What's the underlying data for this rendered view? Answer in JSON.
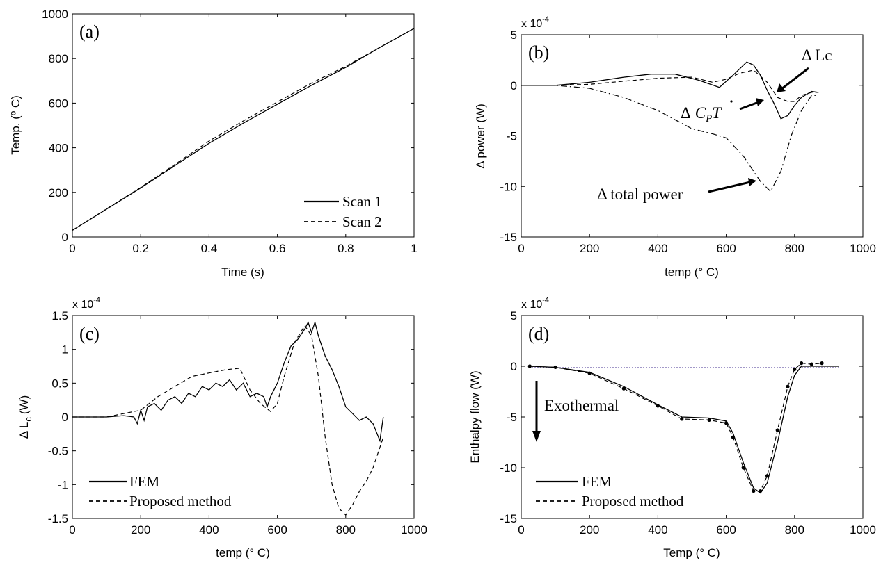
{
  "chart_data": [
    {
      "panel": "(a)",
      "type": "line",
      "xlabel": "Time (s)",
      "ylabel": "Temp. (º C)",
      "xlim": [
        0,
        1
      ],
      "ylim": [
        0,
        1000
      ],
      "xticks": [
        0,
        0.2,
        0.4,
        0.6,
        0.8,
        1
      ],
      "yticks": [
        0,
        200,
        400,
        600,
        800,
        1000
      ],
      "legend": {
        "placement": "bottom-right"
      },
      "series": [
        {
          "name": "Scan 1",
          "style": "solid",
          "x": [
            0,
            0.1,
            0.2,
            0.3,
            0.4,
            0.5,
            0.6,
            0.7,
            0.8,
            0.9,
            1.0
          ],
          "y": [
            30,
            125,
            220,
            320,
            420,
            510,
            595,
            680,
            760,
            850,
            935
          ]
        },
        {
          "name": "Scan 2",
          "style": "dashed",
          "x": [
            0,
            0.1,
            0.2,
            0.3,
            0.4,
            0.5,
            0.6,
            0.7,
            0.8,
            0.9,
            1.0
          ],
          "y": [
            30,
            126,
            222,
            325,
            430,
            520,
            605,
            690,
            765,
            850,
            935
          ]
        }
      ]
    },
    {
      "panel": "(b)",
      "type": "line",
      "xlabel": "temp (° C)",
      "ylabel": "Δ power (W)",
      "multiplier_base": "x 10",
      "multiplier_exp": "-4",
      "xlim": [
        0,
        1000
      ],
      "ylim": [
        -15,
        5
      ],
      "xticks": [
        0,
        200,
        400,
        600,
        800,
        1000
      ],
      "yticks": [
        -15,
        -10,
        -5,
        0,
        5
      ],
      "annotations": {
        "lc": "Δ Lc",
        "cpt_delta": "Δ",
        "cpt_c": "C",
        "cpt_sub": "P",
        "cpt_t": "T",
        "total": "Δ total power"
      },
      "series": [
        {
          "style": "solid",
          "x": [
            0,
            100,
            200,
            300,
            380,
            450,
            520,
            580,
            620,
            660,
            680,
            700,
            720,
            740,
            760,
            780,
            800,
            820,
            850,
            870
          ],
          "y": [
            0,
            0,
            0.3,
            0.8,
            1.1,
            1.1,
            0.5,
            -0.2,
            1.0,
            2.3,
            2.0,
            1.0,
            -0.5,
            -1.8,
            -3.3,
            -3.0,
            -2.0,
            -1.2,
            -0.6,
            -0.7
          ]
        },
        {
          "style": "dashed",
          "x": [
            0,
            100,
            200,
            300,
            400,
            500,
            560,
            600,
            640,
            680,
            720,
            750,
            780,
            800,
            820,
            850,
            870
          ],
          "y": [
            0,
            0,
            0.1,
            0.4,
            0.7,
            0.8,
            0.3,
            0.6,
            1.2,
            1.5,
            0.3,
            -1.2,
            -1.6,
            -1.6,
            -1.0,
            -0.7,
            -0.7
          ]
        },
        {
          "style": "dashdot",
          "x": [
            0,
            100,
            200,
            300,
            400,
            500,
            560,
            600,
            650,
            700,
            730,
            760,
            790,
            820,
            850,
            870
          ],
          "y": [
            0,
            0,
            -0.3,
            -1.2,
            -2.5,
            -4.3,
            -4.8,
            -5.2,
            -7.0,
            -9.5,
            -10.5,
            -8.5,
            -5.0,
            -2.5,
            -1.0,
            -1.0
          ]
        }
      ]
    },
    {
      "panel": "(c)",
      "type": "line",
      "xlabel": "temp (° C)",
      "ylabel": "Δ L",
      "ylabel_sub": "c",
      "ylabel_unit": "(W)",
      "multiplier_base": "x 10",
      "multiplier_exp": "-4",
      "xlim": [
        0,
        1000
      ],
      "ylim": [
        -1.5,
        1.5
      ],
      "xticks": [
        0,
        200,
        400,
        600,
        800,
        1000
      ],
      "yticks": [
        -1.5,
        -1,
        -0.5,
        0,
        0.5,
        1,
        1.5
      ],
      "legend": {
        "placement": "bottom-left"
      },
      "series": [
        {
          "name": "FEM",
          "style": "solid",
          "x": [
            0,
            100,
            150,
            180,
            190,
            200,
            210,
            220,
            240,
            260,
            280,
            300,
            320,
            340,
            360,
            380,
            400,
            420,
            440,
            460,
            480,
            500,
            520,
            540,
            560,
            570,
            580,
            600,
            620,
            640,
            660,
            680,
            690,
            700,
            710,
            720,
            730,
            740,
            760,
            780,
            800,
            820,
            840,
            860,
            880,
            900,
            910
          ],
          "y": [
            0,
            0,
            0.02,
            0.0,
            -0.1,
            0.1,
            -0.05,
            0.15,
            0.2,
            0.1,
            0.25,
            0.3,
            0.2,
            0.35,
            0.3,
            0.45,
            0.4,
            0.5,
            0.45,
            0.55,
            0.4,
            0.5,
            0.3,
            0.35,
            0.3,
            0.15,
            0.3,
            0.5,
            0.8,
            1.05,
            1.15,
            1.3,
            1.4,
            1.25,
            1.4,
            1.2,
            1.05,
            0.9,
            0.7,
            0.45,
            0.15,
            0.05,
            -0.05,
            0.0,
            -0.1,
            -0.35,
            0.0
          ]
        },
        {
          "name": "Proposed method",
          "style": "dashed",
          "x": [
            0,
            100,
            200,
            250,
            300,
            350,
            400,
            450,
            490,
            520,
            550,
            580,
            600,
            620,
            650,
            680,
            700,
            720,
            740,
            760,
            780,
            800,
            820,
            840,
            860,
            880,
            900,
            910
          ],
          "y": [
            0,
            0,
            0.1,
            0.3,
            0.45,
            0.6,
            0.65,
            0.7,
            0.72,
            0.4,
            0.2,
            0.08,
            0.2,
            0.6,
            1.1,
            1.35,
            1.2,
            0.6,
            -0.3,
            -1.0,
            -1.35,
            -1.45,
            -1.3,
            -1.1,
            -0.95,
            -0.75,
            -0.45,
            -0.3
          ]
        }
      ]
    },
    {
      "panel": "(d)",
      "type": "line",
      "xlabel": "Temp (° C)",
      "ylabel": "Enthalpy flow (W)",
      "multiplier_base": "x 10",
      "multiplier_exp": "-4",
      "xlim": [
        0,
        1000
      ],
      "ylim": [
        -15,
        5
      ],
      "xticks": [
        0,
        200,
        400,
        600,
        800,
        1000
      ],
      "yticks": [
        -15,
        -10,
        -5,
        0,
        5
      ],
      "legend": {
        "placement": "bottom-left"
      },
      "annotations": {
        "exothermal": "Exothermal"
      },
      "series": [
        {
          "name": "FEM",
          "style": "solid",
          "x": [
            25,
            100,
            200,
            300,
            400,
            470,
            550,
            600,
            620,
            650,
            680,
            700,
            720,
            750,
            780,
            800,
            820,
            850,
            900,
            930
          ],
          "y": [
            0,
            -0.1,
            -0.6,
            -2.0,
            -3.8,
            -5.0,
            -5.1,
            -5.4,
            -6.6,
            -9.5,
            -12.0,
            -12.5,
            -11.5,
            -7.5,
            -3.0,
            -0.9,
            0.0,
            0.0,
            0.0,
            0.0
          ]
        },
        {
          "name": "Proposed method",
          "style": "dashed",
          "x": [
            25,
            100,
            200,
            300,
            400,
            470,
            550,
            600,
            620,
            650,
            680,
            700,
            720,
            750,
            780,
            800,
            820,
            850,
            880
          ],
          "y": [
            0,
            -0.1,
            -0.7,
            -2.2,
            -3.9,
            -5.2,
            -5.3,
            -5.6,
            -7.0,
            -10.0,
            -12.3,
            -12.3,
            -10.8,
            -6.3,
            -2.0,
            -0.3,
            0.3,
            0.2,
            0.3
          ]
        }
      ]
    }
  ]
}
